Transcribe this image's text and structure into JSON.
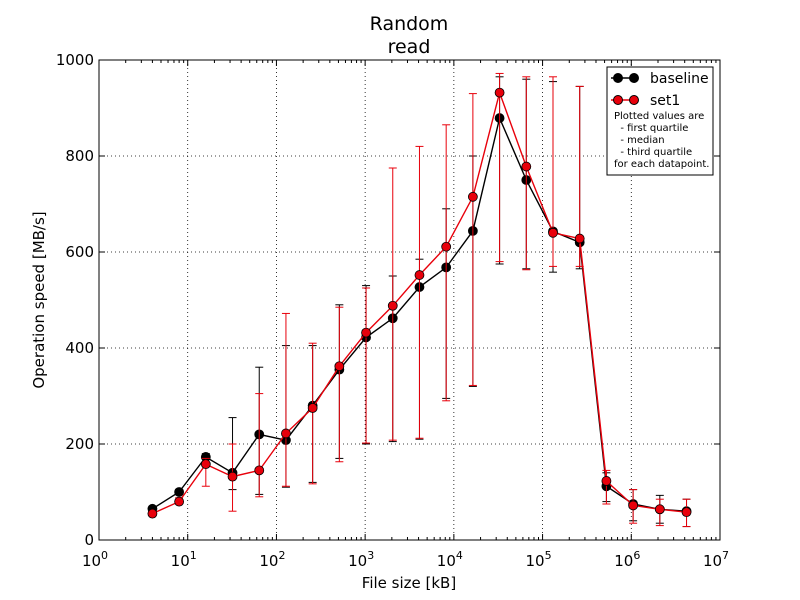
{
  "chart_data": {
    "type": "line",
    "title_lines": [
      "Random",
      "read"
    ],
    "xlabel": "File size [kB]",
    "ylabel": "Operation speed [MB/s]",
    "x_scale": "log",
    "xlim": [
      1,
      10000000
    ],
    "ylim": [
      0,
      1000
    ],
    "x_ticks": [
      {
        "base": "10",
        "exp": "0"
      },
      {
        "base": "10",
        "exp": "1"
      },
      {
        "base": "10",
        "exp": "2"
      },
      {
        "base": "10",
        "exp": "3"
      },
      {
        "base": "10",
        "exp": "4"
      },
      {
        "base": "10",
        "exp": "5"
      },
      {
        "base": "10",
        "exp": "6"
      },
      {
        "base": "10",
        "exp": "7"
      }
    ],
    "y_ticks": [
      "0",
      "200",
      "400",
      "600",
      "800",
      "1000"
    ],
    "grid": true,
    "legend_position": "top-right",
    "legend_note": [
      "Plotted values are",
      "  - first quartile",
      "  - median",
      "  - third quartile",
      "for each datapoint."
    ],
    "x": [
      4,
      8,
      16,
      32,
      64,
      128,
      256,
      512,
      1024,
      2048,
      4096,
      8192,
      16384,
      32768,
      65536,
      131072,
      262144,
      524288,
      1048576,
      2097152,
      4194304
    ],
    "series": [
      {
        "name": "baseline",
        "color": "#000000",
        "median": [
          65,
          100,
          173,
          140,
          220,
          208,
          280,
          355,
          422,
          462,
          527,
          568,
          644,
          879,
          750,
          643,
          620,
          112,
          75,
          64,
          60
        ],
        "q1": [
          60,
          95,
          160,
          105,
          95,
          110,
          120,
          170,
          200,
          205,
          210,
          295,
          320,
          575,
          565,
          558,
          565,
          80,
          40,
          35,
          28
        ],
        "q3": [
          70,
          105,
          180,
          255,
          360,
          405,
          405,
          490,
          530,
          550,
          585,
          690,
          800,
          965,
          960,
          955,
          945,
          140,
          105,
          93,
          85
        ]
      },
      {
        "name": "set1",
        "color": "#e8000b",
        "median": [
          55,
          80,
          158,
          132,
          145,
          222,
          275,
          362,
          432,
          488,
          552,
          611,
          715,
          932,
          778,
          640,
          628,
          123,
          72,
          64,
          58
        ],
        "q1": [
          50,
          75,
          112,
          60,
          90,
          112,
          117,
          163,
          202,
          208,
          212,
          290,
          322,
          580,
          563,
          570,
          570,
          75,
          35,
          30,
          28
        ],
        "q3": [
          60,
          88,
          170,
          200,
          305,
          472,
          410,
          485,
          525,
          775,
          820,
          865,
          930,
          972,
          965,
          965,
          945,
          145,
          105,
          85,
          85
        ]
      }
    ]
  }
}
